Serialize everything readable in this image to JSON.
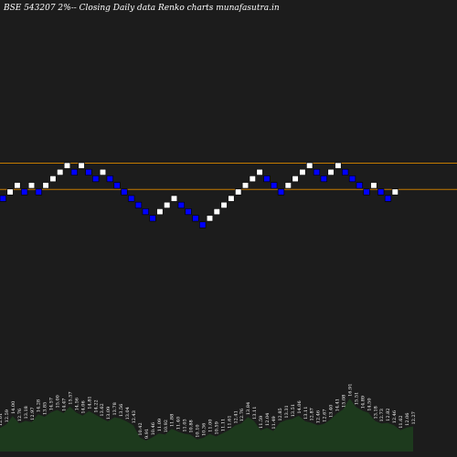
{
  "header": {
    "title": "BSE 543207 2%-- Closing Daily data  Renko  charts munafasutra.in"
  },
  "chart_data": {
    "type": "renko",
    "brick_size_label": "2%",
    "colors": {
      "background": "#1c1c1c",
      "up_brick": "#ffffff",
      "down_brick": "#0000ff",
      "level_line": "#c47a00",
      "volume_area": "#1d3a1d"
    },
    "bricks": [
      {
        "dir": "down",
        "level": 0
      },
      {
        "dir": "up",
        "level": 1
      },
      {
        "dir": "up",
        "level": 2
      },
      {
        "dir": "down",
        "level": 1
      },
      {
        "dir": "up",
        "level": 2
      },
      {
        "dir": "down",
        "level": 1
      },
      {
        "dir": "up",
        "level": 2
      },
      {
        "dir": "up",
        "level": 3
      },
      {
        "dir": "up",
        "level": 4
      },
      {
        "dir": "up",
        "level": 5
      },
      {
        "dir": "down",
        "level": 4
      },
      {
        "dir": "up",
        "level": 5
      },
      {
        "dir": "down",
        "level": 4
      },
      {
        "dir": "down",
        "level": 3
      },
      {
        "dir": "up",
        "level": 4
      },
      {
        "dir": "down",
        "level": 3
      },
      {
        "dir": "down",
        "level": 2
      },
      {
        "dir": "down",
        "level": 1
      },
      {
        "dir": "down",
        "level": 0
      },
      {
        "dir": "down",
        "level": -1
      },
      {
        "dir": "down",
        "level": -2
      },
      {
        "dir": "down",
        "level": -3
      },
      {
        "dir": "up",
        "level": -2
      },
      {
        "dir": "up",
        "level": -1
      },
      {
        "dir": "up",
        "level": 0
      },
      {
        "dir": "down",
        "level": -1
      },
      {
        "dir": "down",
        "level": -2
      },
      {
        "dir": "down",
        "level": -3
      },
      {
        "dir": "down",
        "level": -4
      },
      {
        "dir": "up",
        "level": -3
      },
      {
        "dir": "up",
        "level": -2
      },
      {
        "dir": "up",
        "level": -1
      },
      {
        "dir": "up",
        "level": 0
      },
      {
        "dir": "up",
        "level": 1
      },
      {
        "dir": "up",
        "level": 2
      },
      {
        "dir": "up",
        "level": 3
      },
      {
        "dir": "up",
        "level": 4
      },
      {
        "dir": "down",
        "level": 3
      },
      {
        "dir": "down",
        "level": 2
      },
      {
        "dir": "down",
        "level": 1
      },
      {
        "dir": "up",
        "level": 2
      },
      {
        "dir": "up",
        "level": 3
      },
      {
        "dir": "up",
        "level": 4
      },
      {
        "dir": "up",
        "level": 5
      },
      {
        "dir": "down",
        "level": 4
      },
      {
        "dir": "down",
        "level": 3
      },
      {
        "dir": "up",
        "level": 4
      },
      {
        "dir": "up",
        "level": 5
      },
      {
        "dir": "down",
        "level": 4
      },
      {
        "dir": "down",
        "level": 3
      },
      {
        "dir": "down",
        "level": 2
      },
      {
        "dir": "down",
        "level": 1
      },
      {
        "dir": "up",
        "level": 2
      },
      {
        "dir": "down",
        "level": 1
      },
      {
        "dir": "down",
        "level": 0
      },
      {
        "dir": "up",
        "level": 1
      }
    ],
    "level_lines": [
      {
        "level": 5.5
      },
      {
        "level": 1.5
      }
    ],
    "volume_labels": [
      "12.01",
      "12.59",
      "14.00",
      "12.76",
      "13.18",
      "12.97",
      "14.28",
      "13.85",
      "14.57",
      "15.00",
      "14.47",
      "15.57",
      "14.56",
      "14.06",
      "14.81",
      "14.22",
      "13.62",
      "13.09",
      "13.78",
      "13.56",
      "13.04",
      "12.43",
      "10.42",
      "9.91",
      "10.46",
      "11.09",
      "10.92",
      "11.88",
      "11.40",
      "11.03",
      "10.88",
      "10.10",
      "10.36",
      "11.00",
      "10.59",
      "11.11",
      "11.61",
      "12.41",
      "12.76",
      "13.84",
      "13.11",
      "11.59",
      "12.04",
      "11.49",
      "12.85",
      "13.31",
      "13.51",
      "14.06",
      "13.11",
      "12.87",
      "12.46",
      "12.67",
      "13.40",
      "14.41",
      "15.08",
      "16.91",
      "15.51",
      "14.89",
      "14.50",
      "13.18",
      "12.73",
      "12.82",
      "12.46",
      "11.62",
      "12.06",
      "12.27"
    ]
  }
}
